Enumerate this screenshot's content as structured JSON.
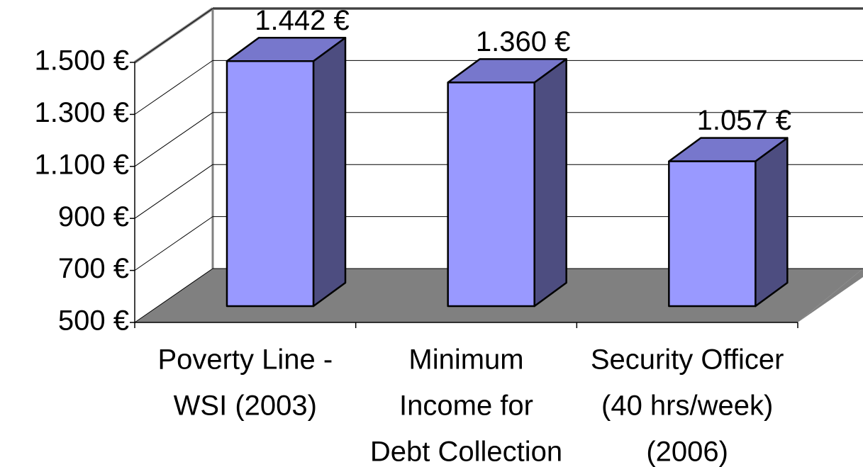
{
  "chart_data": {
    "type": "bar3d",
    "categories": [
      [
        "Poverty Line -",
        "WSI (2003)"
      ],
      [
        "Minimum",
        "Income for",
        "Debt Collection"
      ],
      [
        "Security Officer",
        "(40 hrs/week)",
        "(2006)"
      ]
    ],
    "values": [
      1442,
      1360,
      1057
    ],
    "value_labels": [
      "1.442 €",
      "1.360 €",
      "1.057 €"
    ],
    "color": "#9999ff",
    "ylim": [
      500,
      1500
    ],
    "yticks": [
      {
        "value": 500,
        "label": "500 €"
      },
      {
        "value": 700,
        "label": "700 €"
      },
      {
        "value": 900,
        "label": "900 €"
      },
      {
        "value": 1100,
        "label": "1.100 €"
      },
      {
        "value": 1300,
        "label": "1.300 €"
      },
      {
        "value": 1500,
        "label": "1.500 €"
      }
    ],
    "grid": true
  }
}
